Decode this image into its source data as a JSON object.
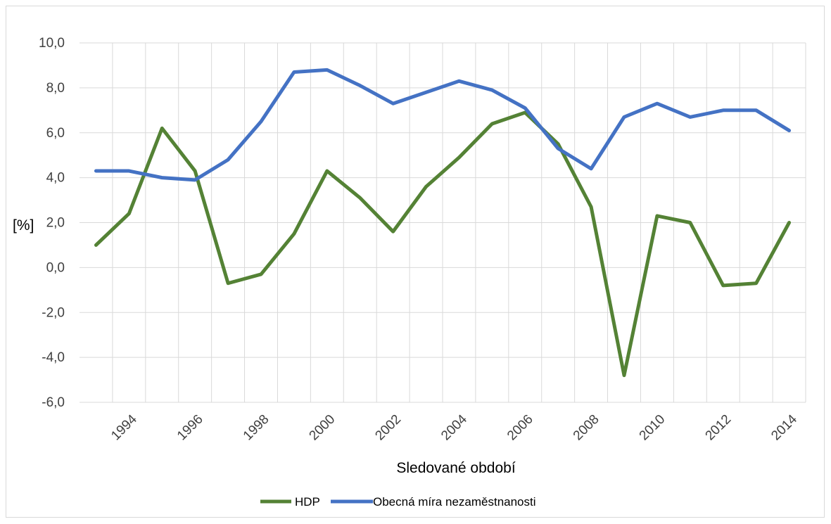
{
  "chart_data": {
    "type": "line",
    "xlabel": "Sledované období",
    "ylabel": "[%]",
    "x": [
      1993,
      1994,
      1995,
      1996,
      1997,
      1998,
      1999,
      2000,
      2001,
      2002,
      2003,
      2004,
      2005,
      2006,
      2007,
      2008,
      2009,
      2010,
      2011,
      2012,
      2013,
      2014
    ],
    "x_tick_labels": [
      "1994",
      "1996",
      "1998",
      "2000",
      "2002",
      "2004",
      "2006",
      "2008",
      "2010",
      "2012",
      "2014"
    ],
    "y_tick_labels": [
      "10,0",
      "8,0",
      "6,0",
      "4,0",
      "2,0",
      "0,0",
      "-2,0",
      "-4,0",
      "-6,0"
    ],
    "ylim": [
      -6,
      10
    ],
    "grid": "vertical and horizontal",
    "legend_position": "bottom",
    "series": [
      {
        "name": "HDP",
        "color": "#548235",
        "values": [
          1.0,
          2.4,
          6.2,
          4.3,
          -0.7,
          -0.3,
          1.5,
          4.3,
          3.1,
          1.6,
          3.6,
          4.9,
          6.4,
          6.9,
          5.5,
          2.7,
          -4.8,
          2.3,
          2.0,
          -0.8,
          -0.7,
          2.0
        ]
      },
      {
        "name": "Obecná míra nezaměstnanosti",
        "color": "#4472C4",
        "values": [
          4.3,
          4.3,
          4.0,
          3.9,
          4.8,
          6.5,
          8.7,
          8.8,
          8.1,
          7.3,
          7.8,
          8.3,
          7.9,
          7.1,
          5.3,
          4.4,
          6.7,
          7.3,
          6.7,
          7.0,
          7.0,
          6.1
        ]
      }
    ]
  }
}
